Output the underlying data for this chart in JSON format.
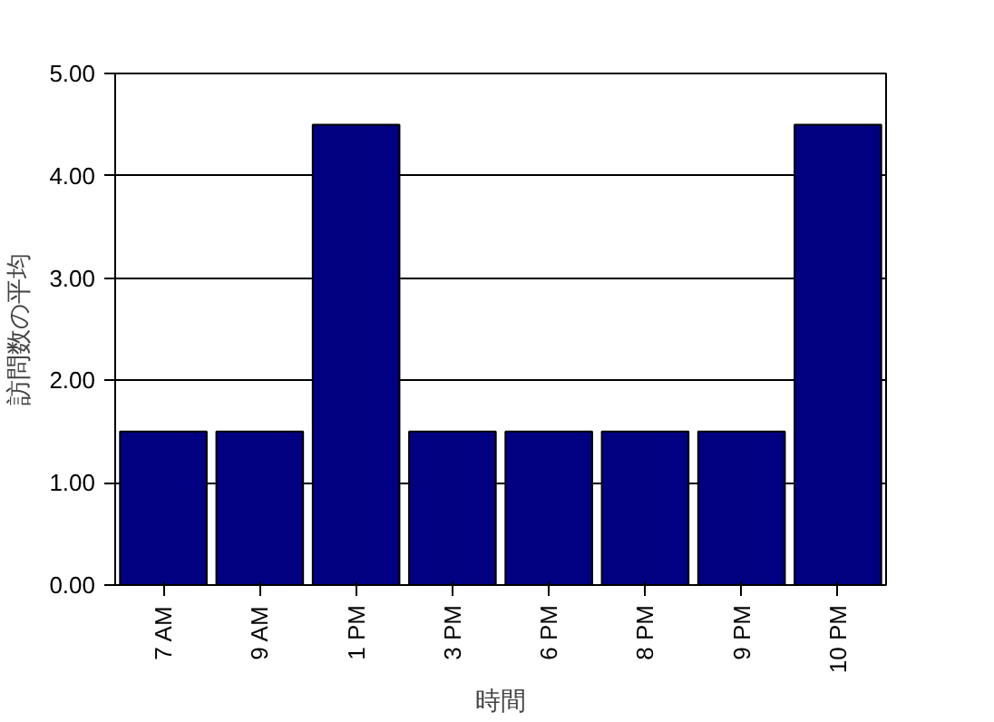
{
  "chart_data": {
    "type": "bar",
    "xlabel": "時間",
    "ylabel": "訪問数の平均",
    "categories": [
      "7 AM",
      "9 AM",
      "1 PM",
      "3 PM",
      "6 PM",
      "8 PM",
      "9 PM",
      "10 PM"
    ],
    "values": [
      1.5,
      1.5,
      4.5,
      1.5,
      1.5,
      1.5,
      1.5,
      4.5
    ],
    "color": "#000080",
    "ylim": [
      0,
      5
    ],
    "yticks": [
      {
        "value": 0,
        "label": "0.00"
      },
      {
        "value": 1,
        "label": "1.00"
      },
      {
        "value": 2,
        "label": "2.00"
      },
      {
        "value": 3,
        "label": "3.00"
      },
      {
        "value": 4,
        "label": "4.00"
      },
      {
        "value": 5,
        "label": "5.00"
      }
    ],
    "grid": "y"
  }
}
